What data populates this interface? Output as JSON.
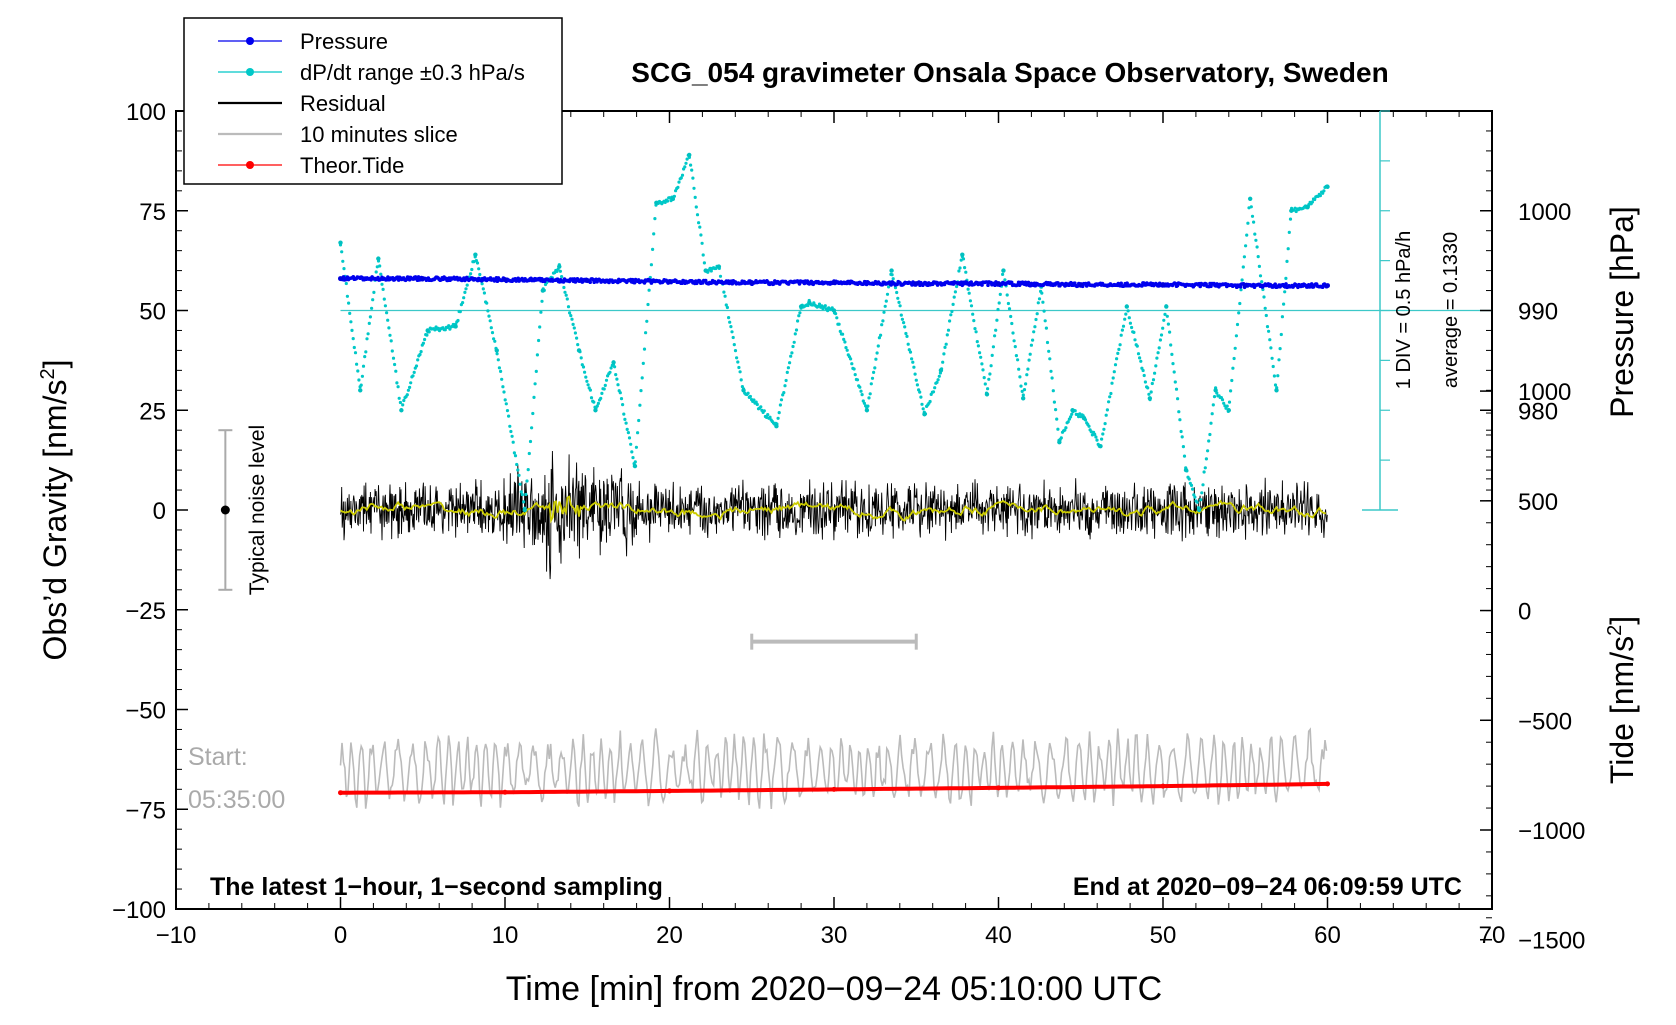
{
  "chart_data": {
    "type": "line",
    "title": "SCG_054 gravimeter Onsala Space Observatory, Sweden",
    "xlabel": "Time [min] from 2020−09−24 05:10:00 UTC",
    "ylabel_left": "Obs’d Gravity [nm/s²]",
    "ylabel_left_main": "Obs’d Gravity [nm/s",
    "ylabel_left_sup": "2",
    "ylabel_left_end": "]",
    "ylabel_pressure": "Pressure [hPa]",
    "ylabel_tide": "Tide [nm/s²]",
    "ylabel_tide_main": "Tide [nm/s",
    "ylabel_tide_sup": "2",
    "ylabel_tide_end": "]",
    "xlim": [
      -10,
      70
    ],
    "ylim": [
      -100,
      100
    ],
    "pressure_range": [
      970,
      1010
    ],
    "tide_range": [
      -1500,
      1000
    ],
    "x_ticks": [
      -10,
      0,
      10,
      20,
      30,
      40,
      50,
      60,
      70
    ],
    "x_tick_labels": [
      "−10",
      "0",
      "10",
      "20",
      "30",
      "40",
      "50",
      "60",
      "70"
    ],
    "y_ticks": [
      100,
      75,
      50,
      25,
      0,
      -25,
      -50,
      -75,
      -100
    ],
    "y_tick_labels": [
      "100",
      "75",
      "50",
      "25",
      "0",
      "−25",
      "−50",
      "−75",
      "−100"
    ],
    "pressure_ticks": [
      1000,
      990,
      980
    ],
    "pressure_tick_labels": [
      "1000",
      "990",
      "980"
    ],
    "tide_ticks": [
      1000,
      500,
      0,
      -500,
      -1000,
      -1500
    ],
    "tide_tick_labels": [
      "1000",
      "500",
      "0",
      "−500",
      "−1000",
      "−1500"
    ],
    "legend": [
      {
        "label": "Pressure",
        "color": "#0000ee",
        "style": "line-dot"
      },
      {
        "label": "dP/dt range ±0.3 hPa/s",
        "color": "#00c8c8",
        "style": "line-dot"
      },
      {
        "label": "Residual",
        "color": "#000000",
        "style": "line"
      },
      {
        "label": "10 minutes slice",
        "color": "#bbbbbb",
        "style": "line"
      },
      {
        "label": "Theor.Tide",
        "color": "#ff0000",
        "style": "line-dot"
      }
    ],
    "annotations": {
      "div_note": "1 DIV = 0.5 hPa/h",
      "average_note": "average = 0.1330",
      "noise_label": "Typical noise level",
      "start_label": "Start:",
      "start_time": "05:35:00",
      "footer_left": "The latest 1−hour, 1−second sampling",
      "footer_right": "End at 2020−09−24 06:09:59 UTC"
    },
    "noise_bar": {
      "x": -7,
      "center": 0,
      "low": -20,
      "high": 20
    },
    "slice_marker": {
      "x_start": 25,
      "x_end": 35,
      "y": -33
    },
    "pressure_reference_line": 990,
    "series": [
      {
        "name": "Pressure",
        "unit": "hPa",
        "color": "#0000ee",
        "x": [
          0,
          5,
          10,
          15,
          20,
          25,
          30,
          35,
          40,
          45,
          50,
          55,
          60
        ],
        "values": [
          993.2,
          993.2,
          993.1,
          993.0,
          992.9,
          992.8,
          992.8,
          992.7,
          992.7,
          992.6,
          992.6,
          992.5,
          992.5
        ]
      },
      {
        "name": "dP/dt",
        "unit": "nm/s² (plotted)",
        "color": "#00c8c8",
        "x": [
          0,
          1.2,
          2.3,
          3.7,
          5.3,
          7.0,
          8.2,
          9.5,
          11.2,
          12.3,
          13.3,
          14.5,
          15.5,
          16.6,
          17.9,
          19.2,
          20.2,
          21.2,
          22.2,
          23.0,
          24.5,
          26.5,
          28.0,
          28.5,
          30.0,
          32.0,
          33.5,
          35.5,
          36.5,
          37.8,
          39.3,
          40.3,
          41.5,
          42.6,
          43.7,
          44.5,
          45.2,
          46.2,
          47.8,
          49.2,
          50.2,
          51.4,
          52.2,
          53.2,
          54.0,
          55.3,
          56.9,
          57.8,
          58.8,
          60.0
        ],
        "values": [
          67,
          30,
          63,
          25,
          45,
          46,
          64,
          40,
          0,
          55,
          61,
          40,
          25,
          37,
          11,
          77,
          78,
          89,
          60,
          61,
          30,
          21,
          51,
          52,
          50,
          25,
          60,
          24,
          35,
          64,
          29,
          60,
          28,
          56,
          17,
          25,
          23,
          16,
          51,
          28,
          51,
          10,
          0,
          30,
          25,
          78,
          30,
          75,
          76,
          81
        ]
      },
      {
        "name": "10 minutes slice",
        "unit": "nm/s²",
        "color": "#bbbbbb",
        "center": -65,
        "amplitude": 8,
        "x_range": [
          0,
          60
        ]
      },
      {
        "name": "Residual",
        "unit": "nm/s²",
        "color": "#000000",
        "center": 0,
        "amplitude": 7,
        "x_range": [
          0,
          60
        ]
      },
      {
        "name": "Residual smoothed",
        "unit": "nm/s²",
        "color": "#cccc00",
        "center": 0,
        "amplitude": 1.5,
        "x_range": [
          0,
          60
        ]
      },
      {
        "name": "Theor.Tide",
        "unit": "nm/s²",
        "color": "#ff0000",
        "x": [
          0,
          10,
          20,
          30,
          40,
          50,
          60
        ],
        "values": [
          -830,
          -828,
          -822,
          -815,
          -808,
          -800,
          -790
        ]
      }
    ]
  }
}
